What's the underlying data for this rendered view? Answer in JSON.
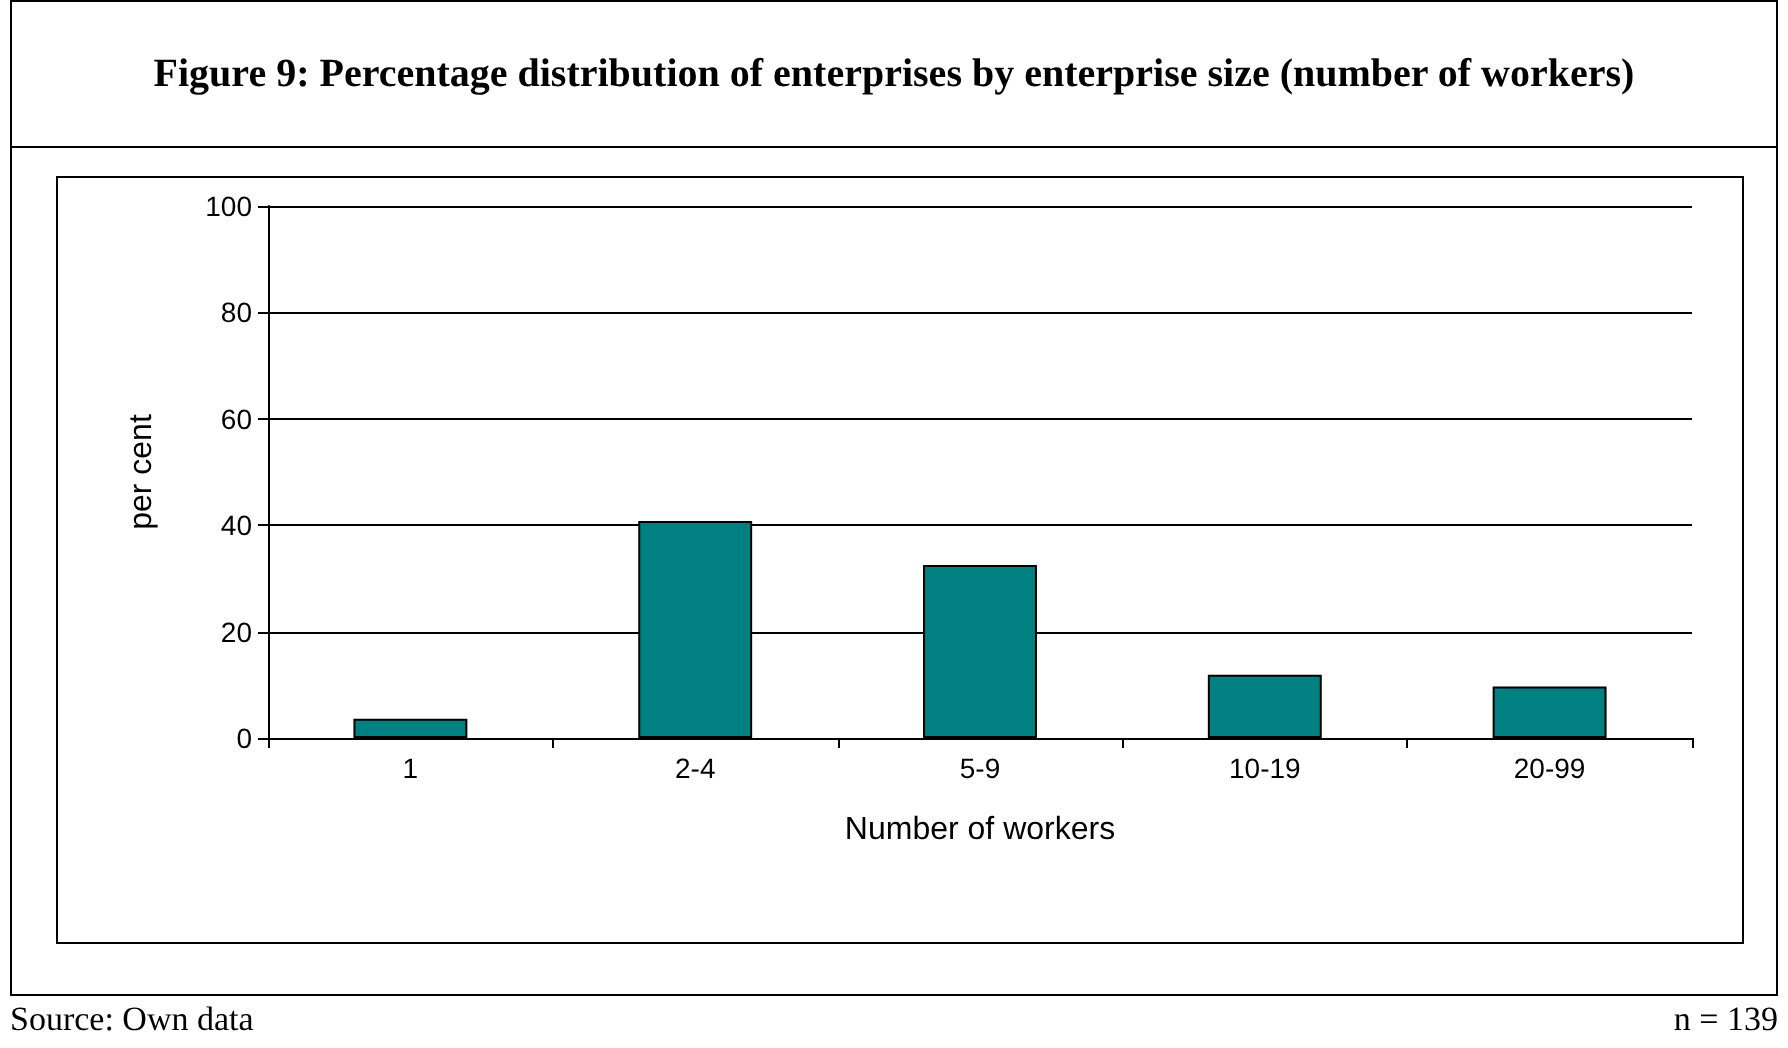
{
  "chart_data": {
    "type": "bar",
    "title": "Figure 9: Percentage distribution of enterprises by enterprise size (number of workers)",
    "categories": [
      "1",
      "2-4",
      "5-9",
      "10-19",
      "20-99"
    ],
    "values": [
      3.6,
      40.8,
      32.5,
      11.9,
      9.7
    ],
    "color": "#008080",
    "xlabel": "Number of workers",
    "ylabel": "per cent",
    "ylim": [
      0,
      100
    ],
    "yticks": [
      0,
      20,
      40,
      60,
      80,
      100
    ],
    "grid": "y",
    "annotations": [
      "Source: Own data",
      "n = 139"
    ]
  }
}
